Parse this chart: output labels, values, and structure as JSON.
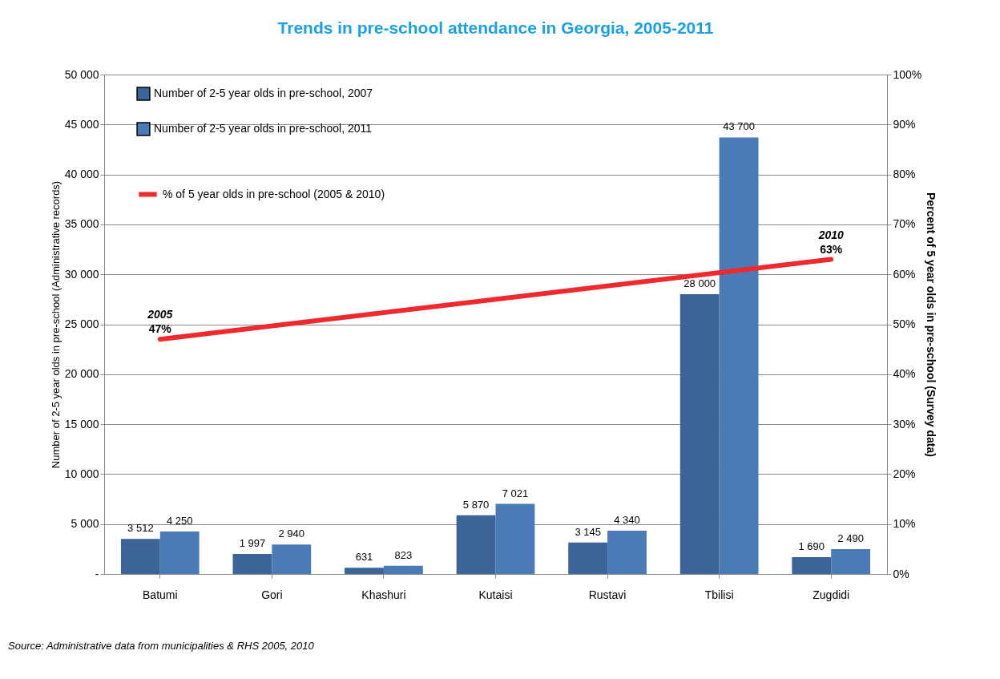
{
  "chart_data": {
    "type": "bar",
    "title": "Trends in pre-school attendance in Georgia, 2005-2011",
    "categories": [
      "Batumi",
      "Gori",
      "Khashuri",
      "Kutaisi",
      "Rustavi",
      "Tbilisi",
      "Zugdidi"
    ],
    "ylabel": "Number of 2-5 year olds in pre-school (Administrative records)",
    "y2label": "Percent of 5 year olds in pre-school (Survey data)",
    "series": [
      {
        "name": "Number of 2-5 year olds in pre-school, 2007",
        "color": "#3c6496",
        "values": [
          3512,
          1997,
          631,
          5870,
          3145,
          28000,
          1690
        ],
        "value_labels": [
          "3 512",
          "1 997",
          "631",
          "5 870",
          "3 145",
          "28 000",
          "1 690"
        ]
      },
      {
        "name": "Number of 2-5 year olds in pre-school, 2011",
        "color": "#4a7bb7",
        "values": [
          4250,
          2940,
          823,
          7021,
          4340,
          43700,
          2490
        ],
        "value_labels": [
          "4 250",
          "2 940",
          "823",
          "7 021",
          "4 340",
          "43 700",
          "2 490"
        ]
      },
      {
        "name": "% of 5 year olds in pre-school (2005 & 2010)",
        "color": "#ee2a2e",
        "type": "line",
        "axis": "y2",
        "x": [
          "Batumi",
          "Zugdidi"
        ],
        "values": [
          47,
          63
        ],
        "value_labels": [
          "47%",
          "63%"
        ]
      }
    ],
    "ylim": [
      0,
      50000
    ],
    "yticks": [
      {
        "value": 0,
        "label": "-"
      },
      {
        "value": 5000,
        "label": "5 000"
      },
      {
        "value": 10000,
        "label": "10 000"
      },
      {
        "value": 15000,
        "label": "15 000"
      },
      {
        "value": 20000,
        "label": "20 000"
      },
      {
        "value": 25000,
        "label": "25 000"
      },
      {
        "value": 30000,
        "label": "30 000"
      },
      {
        "value": 35000,
        "label": "35 000"
      },
      {
        "value": 40000,
        "label": "40 000"
      },
      {
        "value": 45000,
        "label": "45 000"
      },
      {
        "value": 50000,
        "label": "50 000"
      }
    ],
    "y2lim": [
      0,
      100
    ],
    "y2ticks": [
      {
        "value": 0,
        "label": "0%"
      },
      {
        "value": 10,
        "label": "10%"
      },
      {
        "value": 20,
        "label": "20%"
      },
      {
        "value": 30,
        "label": "30%"
      },
      {
        "value": 40,
        "label": "40%"
      },
      {
        "value": 50,
        "label": "50%"
      },
      {
        "value": 60,
        "label": "60%"
      },
      {
        "value": 70,
        "label": "70%"
      },
      {
        "value": 80,
        "label": "80%"
      },
      {
        "value": 90,
        "label": "90%"
      },
      {
        "value": 100,
        "label": "100%"
      }
    ],
    "annotations": [
      "2005",
      "2010",
      "Source: Administrative data from municipalities & RHS 2005, 2010"
    ],
    "grid": "y",
    "legend": "top left"
  }
}
